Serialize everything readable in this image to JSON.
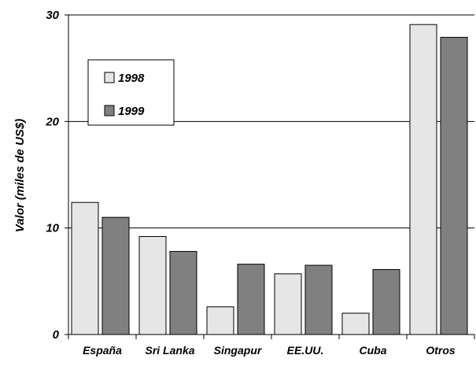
{
  "chart_data": {
    "type": "bar",
    "categories": [
      "España",
      "Sri Lanka",
      "Singapur",
      "EE.UU.",
      "Cuba",
      "Otros"
    ],
    "series": [
      {
        "name": "1998",
        "color": "#e6e6e6",
        "values": [
          12.4,
          9.2,
          2.6,
          5.7,
          2.0,
          29.1
        ]
      },
      {
        "name": "1999",
        "color": "#808080",
        "values": [
          11.0,
          7.8,
          6.6,
          6.5,
          6.1,
          27.9
        ]
      }
    ],
    "title": "",
    "xlabel": "",
    "ylabel": "Valor (miles de US$)",
    "ylim": [
      0,
      30
    ],
    "yticks": [
      0,
      10,
      20,
      30
    ],
    "grid": true,
    "legend_position": "top-left"
  }
}
